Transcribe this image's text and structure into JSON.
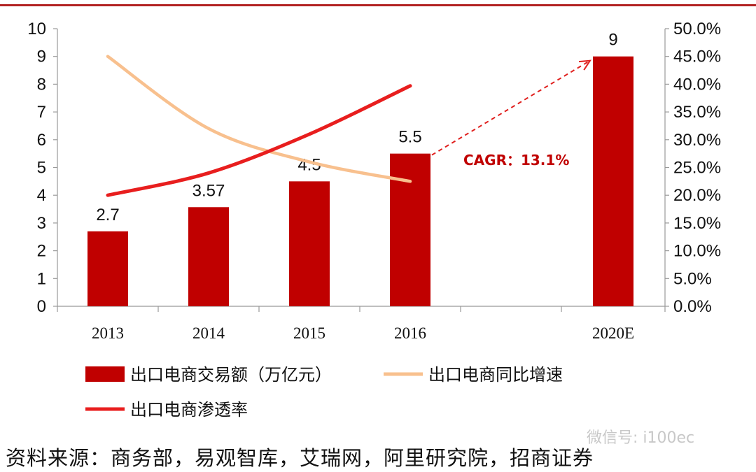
{
  "chart_data": {
    "type": "bar+line",
    "categories": [
      "2013",
      "2014",
      "2015",
      "2016",
      "2020E"
    ],
    "bar_series": {
      "name": "出口电商交易额（万亿元）",
      "values": [
        2.7,
        3.57,
        4.5,
        5.5,
        9
      ],
      "data_labels": [
        "2.7",
        "3.57",
        "4.5",
        "5.5",
        "9"
      ],
      "color": "#c00000"
    },
    "line_series": [
      {
        "name": "出口电商同比增速",
        "values": [
          0.45,
          0.32,
          0.26,
          0.225,
          null
        ],
        "color": "#f8c08e",
        "axis": "right"
      },
      {
        "name": "出口电商渗透率",
        "values": [
          0.2,
          0.24,
          0.31,
          0.397,
          null
        ],
        "color": "#e81e1e",
        "axis": "right"
      }
    ],
    "left_axis": {
      "range": [
        0,
        10
      ],
      "ticks": [
        "0",
        "1",
        "2",
        "3",
        "4",
        "5",
        "6",
        "7",
        "8",
        "9",
        "10"
      ]
    },
    "right_axis": {
      "range": [
        0,
        0.5
      ],
      "ticks": [
        "0.0%",
        "5.0%",
        "10.0%",
        "15.0%",
        "20.0%",
        "25.0%",
        "30.0%",
        "35.0%",
        "40.0%",
        "45.0%",
        "50.0%"
      ]
    },
    "annotation": {
      "text": "CAGR：13.1%",
      "from": "2016",
      "to": "2020E",
      "color": "#c00000"
    },
    "legend_position": "bottom"
  },
  "source_text": "资料来源：商务部，易观智库，艾瑞网，阿里研究院，招商证券",
  "watermark_text": "微信号: i100ec",
  "colors": {
    "accent": "#b22222"
  }
}
